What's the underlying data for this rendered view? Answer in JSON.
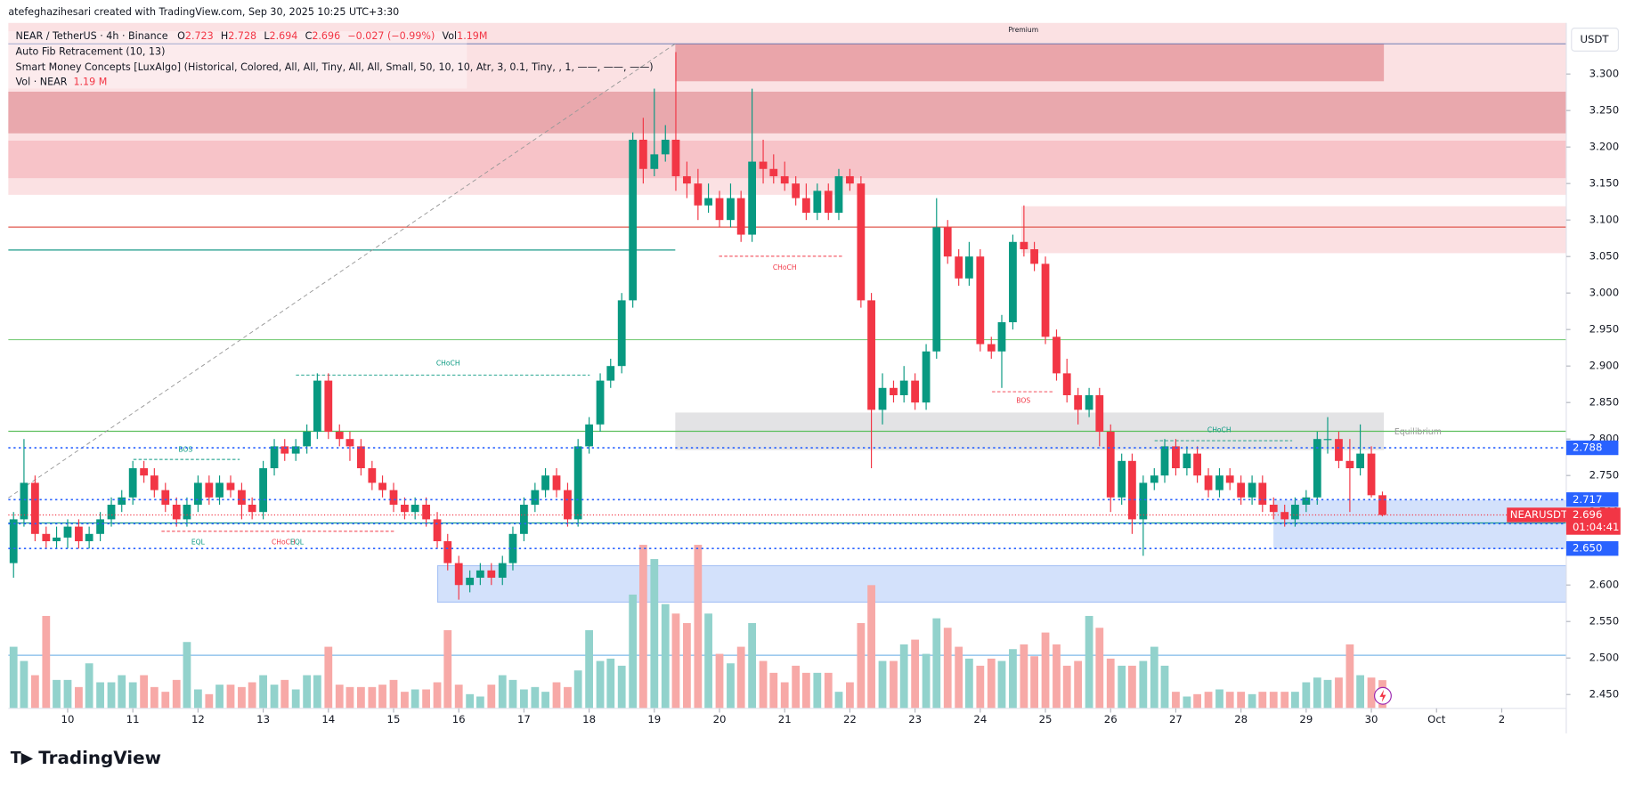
{
  "header": {
    "credit": "atefeghazihesari created with TradingView.com, Sep 30, 2025 10:25 UTC+3:30",
    "brand": "TradingView"
  },
  "chart_data": {
    "type": "candlestick",
    "symbol": "NEAR / TetherUS · 4h · Binance",
    "legend": {
      "o": "O",
      "h": "H",
      "l": "L",
      "c": "C",
      "change": "−0.027 (−0.99%)",
      "vol": "Vol",
      "vol_value": "1.19M"
    },
    "indicators": [
      "Auto Fib Retracement (10, 13)",
      "Smart Money Concepts [LuxAlgo] (Historical, Colored, All, All, Tiny, All, All, Small, 50, 10, 10, Atr, 3, 0.1, Tiny, , 1, ——, ——, ——)"
    ],
    "volume_legend": {
      "name": "Vol · NEAR",
      "value": "1.19 M"
    },
    "currency": "USDT",
    "annotations": [
      "Premium",
      "Equilibrium",
      "CHoCH",
      "CHoCH",
      "BOS",
      "CHoCH",
      "BOS",
      "EQL",
      "CHoCH",
      "EQL"
    ],
    "last_label": "NEARUSDT",
    "countdown": "01:04:41",
    "levels": [
      2.788,
      2.717,
      2.684,
      {
        "value": 2.65,
        "label": "2.650"
      }
    ],
    "level_color": "#2962ff",
    "up_color": "#089981",
    "down_color": "#f23645",
    "volume_up_color": "#92d2cc",
    "volume_down_color": "#f7a9a7",
    "xlim": [
      9.09,
      32.99
    ],
    "xticks": [
      10,
      11,
      12,
      13,
      14,
      15,
      16,
      17,
      18,
      19,
      20,
      21,
      22,
      23,
      24,
      25,
      26,
      27,
      28,
      29,
      30,
      {
        "value": 31,
        "label": "Oct"
      },
      {
        "value": 32,
        "label": "2"
      }
    ],
    "ylim": [
      2.431,
      3.37
    ],
    "yticks": [
      {
        "value": 2.45,
        "label": "2.450"
      },
      {
        "value": 2.5,
        "label": "2.500"
      },
      {
        "value": 2.55,
        "label": "2.550"
      },
      {
        "value": 2.6,
        "label": "2.600"
      },
      {
        "value": 2.65,
        "label": "2.650"
      },
      {
        "value": 2.7,
        "label": "2.700"
      },
      {
        "value": 2.75,
        "label": "2.750"
      },
      {
        "value": 2.8,
        "label": "2.800"
      },
      {
        "value": 2.85,
        "label": "2.850"
      },
      {
        "value": 2.9,
        "label": "2.900"
      },
      {
        "value": 2.95,
        "label": "2.950"
      },
      {
        "value": 3.0,
        "label": "3.000"
      },
      {
        "value": 3.05,
        "label": "3.050"
      },
      {
        "value": 3.1,
        "label": "3.100"
      },
      {
        "value": 3.15,
        "label": "3.150"
      },
      {
        "value": 3.2,
        "label": "3.200"
      },
      {
        "value": 3.25,
        "label": "3.250"
      },
      {
        "value": 3.3,
        "label": "3.300"
      }
    ],
    "x": [
      9.17,
      9.33,
      9.5,
      9.67,
      9.83,
      10,
      10.17,
      10.33,
      10.5,
      10.67,
      10.83,
      11,
      11.17,
      11.33,
      11.5,
      11.67,
      11.83,
      12,
      12.17,
      12.33,
      12.5,
      12.67,
      12.83,
      13,
      13.17,
      13.33,
      13.5,
      13.67,
      13.83,
      14,
      14.17,
      14.33,
      14.5,
      14.67,
      14.83,
      15,
      15.17,
      15.33,
      15.5,
      15.67,
      15.83,
      16,
      16.17,
      16.33,
      16.5,
      16.67,
      16.83,
      17,
      17.17,
      17.33,
      17.5,
      17.67,
      17.83,
      18,
      18.17,
      18.33,
      18.5,
      18.67,
      18.83,
      19,
      19.17,
      19.33,
      19.5,
      19.67,
      19.83,
      20,
      20.17,
      20.33,
      20.5,
      20.67,
      20.83,
      21,
      21.17,
      21.33,
      21.5,
      21.67,
      21.83,
      22,
      22.17,
      22.33,
      22.5,
      22.67,
      22.83,
      23,
      23.17,
      23.33,
      23.5,
      23.67,
      23.83,
      24,
      24.17,
      24.33,
      24.5,
      24.67,
      24.83,
      25,
      25.17,
      25.33,
      25.5,
      25.67,
      25.83,
      26,
      26.17,
      26.33,
      26.5,
      26.67,
      26.83,
      27,
      27.17,
      27.33,
      27.5,
      27.67,
      27.83,
      28,
      28.17,
      28.33,
      28.5,
      28.67,
      28.83,
      29,
      29.17,
      29.33,
      29.5,
      29.67,
      29.83,
      30,
      30.17
    ],
    "ohlc": [
      [
        2.63,
        2.7,
        2.61,
        2.69
      ],
      [
        2.69,
        2.8,
        2.68,
        2.74
      ],
      [
        2.74,
        2.75,
        2.66,
        2.67
      ],
      [
        2.67,
        2.68,
        2.65,
        2.66
      ],
      [
        2.66,
        2.68,
        2.65,
        2.665
      ],
      [
        2.665,
        2.69,
        2.65,
        2.68
      ],
      [
        2.68,
        2.69,
        2.65,
        2.66
      ],
      [
        2.66,
        2.68,
        2.65,
        2.67
      ],
      [
        2.67,
        2.7,
        2.66,
        2.69
      ],
      [
        2.69,
        2.72,
        2.68,
        2.71
      ],
      [
        2.71,
        2.73,
        2.7,
        2.72
      ],
      [
        2.72,
        2.77,
        2.71,
        2.76
      ],
      [
        2.76,
        2.77,
        2.74,
        2.75
      ],
      [
        2.75,
        2.76,
        2.72,
        2.73
      ],
      [
        2.73,
        2.74,
        2.7,
        2.71
      ],
      [
        2.71,
        2.72,
        2.68,
        2.69
      ],
      [
        2.69,
        2.72,
        2.68,
        2.71
      ],
      [
        2.71,
        2.75,
        2.7,
        2.74
      ],
      [
        2.74,
        2.75,
        2.71,
        2.72
      ],
      [
        2.72,
        2.75,
        2.71,
        2.74
      ],
      [
        2.74,
        2.75,
        2.72,
        2.73
      ],
      [
        2.73,
        2.74,
        2.69,
        2.71
      ],
      [
        2.71,
        2.72,
        2.69,
        2.7
      ],
      [
        2.7,
        2.77,
        2.69,
        2.76
      ],
      [
        2.76,
        2.8,
        2.75,
        2.79
      ],
      [
        2.79,
        2.8,
        2.77,
        2.78
      ],
      [
        2.78,
        2.8,
        2.77,
        2.79
      ],
      [
        2.79,
        2.82,
        2.78,
        2.81
      ],
      [
        2.81,
        2.89,
        2.8,
        2.88
      ],
      [
        2.88,
        2.89,
        2.8,
        2.81
      ],
      [
        2.81,
        2.82,
        2.79,
        2.8
      ],
      [
        2.8,
        2.81,
        2.77,
        2.79
      ],
      [
        2.79,
        2.8,
        2.75,
        2.76
      ],
      [
        2.76,
        2.77,
        2.73,
        2.74
      ],
      [
        2.74,
        2.75,
        2.72,
        2.73
      ],
      [
        2.73,
        2.74,
        2.7,
        2.71
      ],
      [
        2.71,
        2.72,
        2.69,
        2.7
      ],
      [
        2.7,
        2.72,
        2.69,
        2.71
      ],
      [
        2.71,
        2.72,
        2.68,
        2.69
      ],
      [
        2.69,
        2.7,
        2.65,
        2.66
      ],
      [
        2.66,
        2.67,
        2.62,
        2.63
      ],
      [
        2.63,
        2.64,
        2.58,
        2.6
      ],
      [
        2.6,
        2.62,
        2.59,
        2.61
      ],
      [
        2.61,
        2.63,
        2.6,
        2.62
      ],
      [
        2.62,
        2.63,
        2.6,
        2.61
      ],
      [
        2.61,
        2.64,
        2.6,
        2.63
      ],
      [
        2.63,
        2.68,
        2.62,
        2.67
      ],
      [
        2.67,
        2.72,
        2.66,
        2.71
      ],
      [
        2.71,
        2.74,
        2.7,
        2.73
      ],
      [
        2.73,
        2.76,
        2.72,
        2.75
      ],
      [
        2.75,
        2.76,
        2.72,
        2.73
      ],
      [
        2.73,
        2.74,
        2.68,
        2.69
      ],
      [
        2.69,
        2.8,
        2.68,
        2.79
      ],
      [
        2.79,
        2.83,
        2.78,
        2.82
      ],
      [
        2.82,
        2.89,
        2.81,
        2.88
      ],
      [
        2.88,
        2.91,
        2.87,
        2.9
      ],
      [
        2.9,
        3.0,
        2.89,
        2.99
      ],
      [
        2.99,
        3.22,
        2.98,
        3.21
      ],
      [
        3.21,
        3.24,
        3.15,
        3.17
      ],
      [
        3.17,
        3.28,
        3.16,
        3.19
      ],
      [
        3.19,
        3.23,
        3.18,
        3.21
      ],
      [
        3.21,
        3.33,
        3.14,
        3.16
      ],
      [
        3.16,
        3.18,
        3.13,
        3.15
      ],
      [
        3.15,
        3.17,
        3.1,
        3.12
      ],
      [
        3.12,
        3.15,
        3.11,
        3.13
      ],
      [
        3.13,
        3.14,
        3.09,
        3.1
      ],
      [
        3.1,
        3.15,
        3.09,
        3.13
      ],
      [
        3.13,
        3.14,
        3.07,
        3.08
      ],
      [
        3.08,
        3.28,
        3.07,
        3.18
      ],
      [
        3.18,
        3.21,
        3.15,
        3.17
      ],
      [
        3.17,
        3.19,
        3.15,
        3.16
      ],
      [
        3.16,
        3.18,
        3.14,
        3.15
      ],
      [
        3.15,
        3.16,
        3.12,
        3.13
      ],
      [
        3.13,
        3.15,
        3.1,
        3.11
      ],
      [
        3.11,
        3.15,
        3.1,
        3.14
      ],
      [
        3.14,
        3.15,
        3.1,
        3.11
      ],
      [
        3.11,
        3.17,
        3.1,
        3.16
      ],
      [
        3.16,
        3.17,
        3.14,
        3.15
      ],
      [
        3.15,
        3.16,
        2.98,
        2.99
      ],
      [
        2.99,
        3.0,
        2.76,
        2.84
      ],
      [
        2.84,
        2.89,
        2.82,
        2.87
      ],
      [
        2.87,
        2.88,
        2.85,
        2.86
      ],
      [
        2.86,
        2.9,
        2.85,
        2.88
      ],
      [
        2.88,
        2.89,
        2.84,
        2.85
      ],
      [
        2.85,
        2.93,
        2.84,
        2.92
      ],
      [
        2.92,
        3.13,
        2.91,
        3.09
      ],
      [
        3.09,
        3.1,
        3.04,
        3.05
      ],
      [
        3.05,
        3.06,
        3.01,
        3.02
      ],
      [
        3.02,
        3.07,
        3.01,
        3.05
      ],
      [
        3.05,
        3.06,
        2.92,
        2.93
      ],
      [
        2.93,
        2.94,
        2.91,
        2.92
      ],
      [
        2.92,
        2.97,
        2.87,
        2.96
      ],
      [
        2.96,
        3.08,
        2.95,
        3.07
      ],
      [
        3.07,
        3.12,
        3.05,
        3.06
      ],
      [
        3.06,
        3.07,
        3.03,
        3.04
      ],
      [
        3.04,
        3.05,
        2.93,
        2.94
      ],
      [
        2.94,
        2.95,
        2.88,
        2.89
      ],
      [
        2.89,
        2.91,
        2.85,
        2.86
      ],
      [
        2.86,
        2.87,
        2.82,
        2.84
      ],
      [
        2.84,
        2.87,
        2.83,
        2.86
      ],
      [
        2.86,
        2.87,
        2.79,
        2.81
      ],
      [
        2.81,
        2.82,
        2.7,
        2.72
      ],
      [
        2.72,
        2.78,
        2.71,
        2.77
      ],
      [
        2.77,
        2.78,
        2.67,
        2.69
      ],
      [
        2.69,
        2.75,
        2.64,
        2.74
      ],
      [
        2.74,
        2.76,
        2.73,
        2.75
      ],
      [
        2.75,
        2.8,
        2.74,
        2.79
      ],
      [
        2.79,
        2.8,
        2.75,
        2.76
      ],
      [
        2.76,
        2.79,
        2.75,
        2.78
      ],
      [
        2.78,
        2.79,
        2.74,
        2.75
      ],
      [
        2.75,
        2.76,
        2.72,
        2.73
      ],
      [
        2.73,
        2.76,
        2.72,
        2.75
      ],
      [
        2.75,
        2.76,
        2.73,
        2.74
      ],
      [
        2.74,
        2.75,
        2.71,
        2.72
      ],
      [
        2.72,
        2.75,
        2.71,
        2.74
      ],
      [
        2.74,
        2.75,
        2.7,
        2.71
      ],
      [
        2.71,
        2.72,
        2.69,
        2.7
      ],
      [
        2.7,
        2.71,
        2.68,
        2.69
      ],
      [
        2.69,
        2.72,
        2.68,
        2.71
      ],
      [
        2.71,
        2.73,
        2.7,
        2.72
      ],
      [
        2.72,
        2.81,
        2.71,
        2.8
      ],
      [
        2.8,
        2.83,
        2.78,
        2.8
      ],
      [
        2.8,
        2.81,
        2.76,
        2.77
      ],
      [
        2.77,
        2.8,
        2.7,
        2.76
      ],
      [
        2.76,
        2.82,
        2.75,
        2.78
      ],
      [
        2.78,
        2.79,
        2.72,
        2.723
      ],
      [
        2.723,
        2.728,
        2.694,
        2.696
      ]
    ],
    "volume": [
      2.6,
      2.0,
      1.4,
      3.9,
      1.2,
      1.2,
      0.9,
      1.9,
      1.1,
      1.1,
      1.4,
      1.1,
      1.4,
      0.9,
      0.7,
      1.2,
      2.8,
      0.8,
      0.6,
      1.0,
      1.0,
      0.9,
      1.1,
      1.4,
      1.0,
      1.2,
      0.8,
      1.4,
      1.4,
      2.6,
      1.0,
      0.9,
      0.9,
      0.9,
      1.0,
      1.2,
      0.7,
      0.8,
      0.8,
      1.1,
      3.3,
      1.0,
      0.6,
      0.5,
      1.0,
      1.4,
      1.2,
      0.8,
      0.9,
      0.7,
      1.1,
      0.9,
      1.6,
      3.3,
      2.0,
      2.1,
      1.8,
      4.8,
      6.9,
      6.3,
      4.4,
      4.0,
      3.6,
      6.9,
      4.0,
      2.3,
      1.9,
      2.6,
      3.6,
      2.0,
      1.5,
      1.1,
      1.8,
      1.5,
      1.5,
      1.5,
      0.7,
      1.1,
      3.6,
      5.2,
      2.0,
      2.0,
      2.7,
      2.9,
      2.3,
      3.8,
      3.4,
      2.6,
      2.1,
      1.8,
      2.1,
      2.0,
      2.5,
      2.7,
      2.2,
      3.2,
      2.7,
      1.8,
      2.0,
      3.9,
      3.4,
      2.1,
      1.8,
      1.8,
      2.0,
      2.6,
      1.8,
      0.7,
      0.5,
      0.6,
      0.7,
      0.8,
      0.7,
      0.7,
      0.6,
      0.7,
      0.7,
      0.7,
      0.7,
      1.1,
      1.3,
      1.2,
      1.3,
      2.7,
      1.4,
      1.3,
      1.19
    ]
  }
}
